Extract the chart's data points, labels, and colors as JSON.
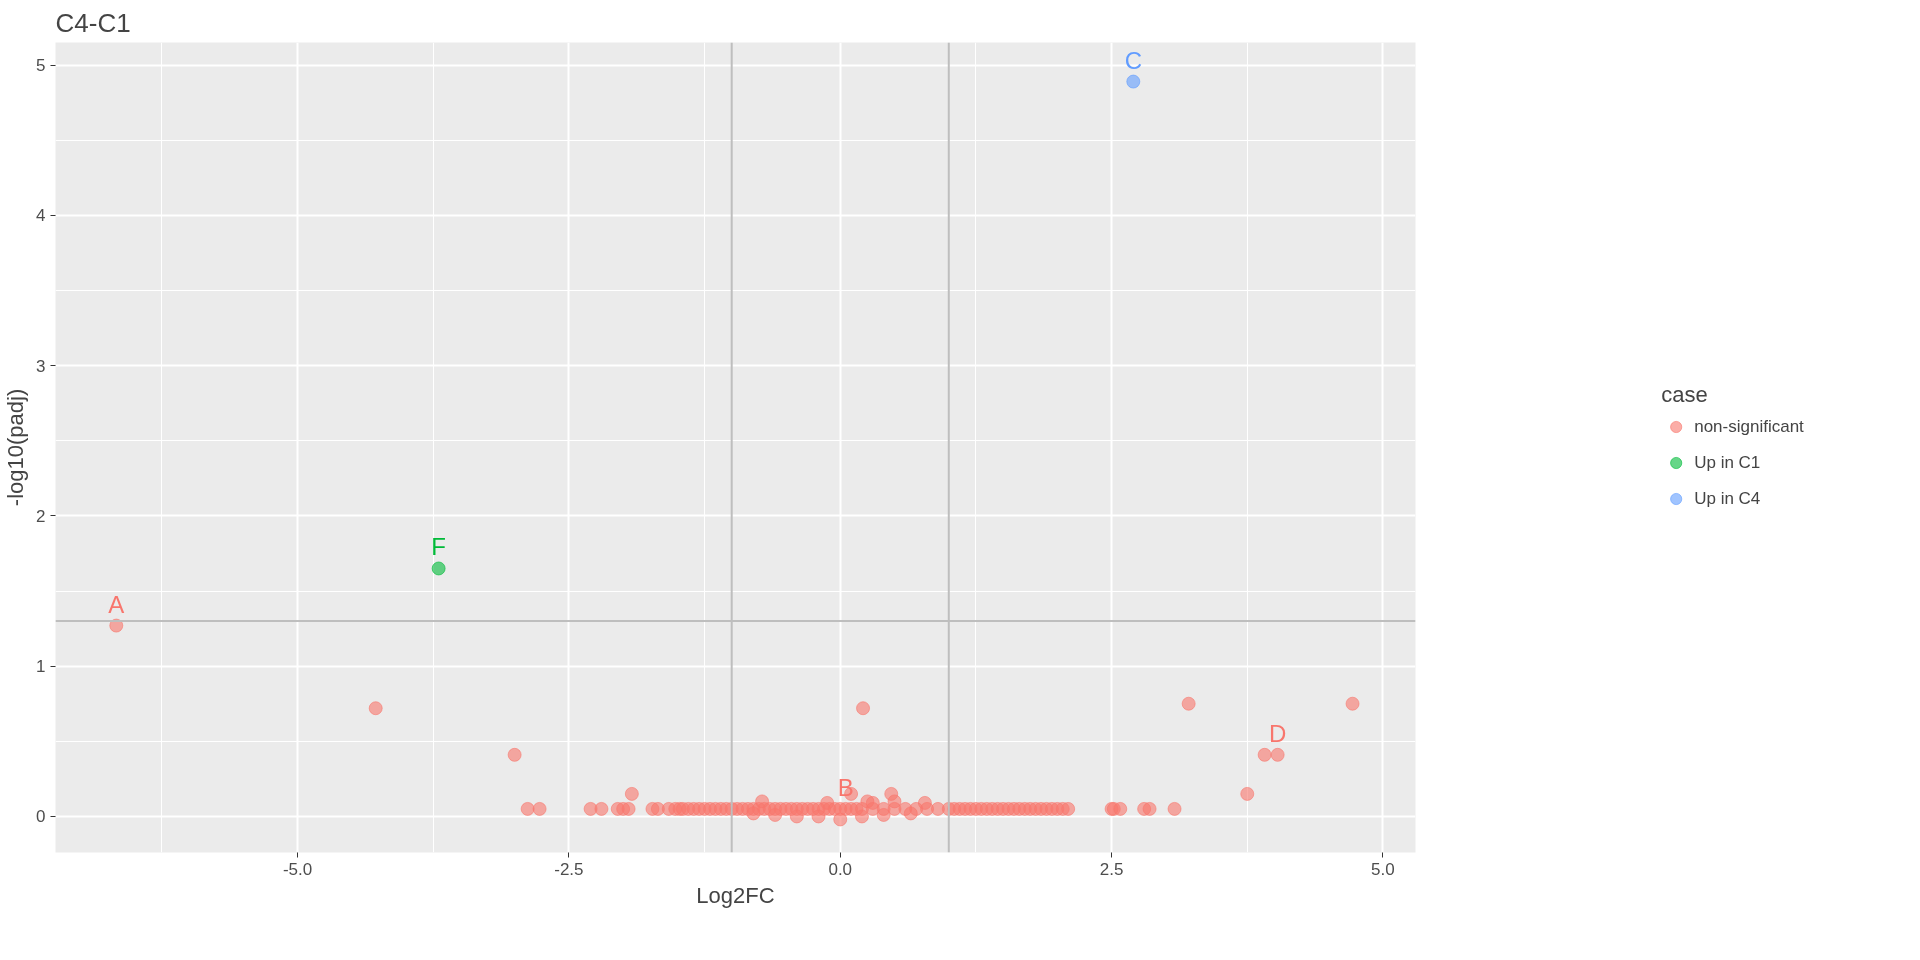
{
  "chart_data": {
    "type": "scatter",
    "title": "C4-C1",
    "xlabel": "Log2FC",
    "ylabel": "-log10(padj)",
    "legend_title": "case",
    "legend": "right",
    "grid": true,
    "marker": "circle",
    "xlim": [
      -7.23,
      5.3
    ],
    "ylim": [
      -0.24,
      5.15
    ],
    "xticks": [
      {
        "value": -5,
        "label": "-5.0"
      },
      {
        "value": -2.5,
        "label": "-2.5"
      },
      {
        "value": 0,
        "label": "0.0"
      },
      {
        "value": 2.5,
        "label": "2.5"
      },
      {
        "value": 5,
        "label": "5.0"
      }
    ],
    "yticks": [
      0,
      1,
      2,
      3,
      4,
      5
    ],
    "ref_lines": [
      {
        "axis": "x",
        "value": -1,
        "color": "#bebebe"
      },
      {
        "axis": "x",
        "value": 1,
        "color": "#bebebe"
      },
      {
        "axis": "y",
        "value": 1.3,
        "color": "#bebebe"
      }
    ],
    "annotations": [
      {
        "text": "A",
        "x": -6.67,
        "y": 1.27
      },
      {
        "text": "B",
        "x": 0.05,
        "y": 0.05
      },
      {
        "text": "C",
        "x": 2.7,
        "y": 4.89
      },
      {
        "text": "D",
        "x": 4.03,
        "y": 0.41
      },
      {
        "text": "F",
        "x": -3.7,
        "y": 1.65
      }
    ],
    "series": [
      {
        "name": "non-significant",
        "color": "#f8766d",
        "x": [
          -6.67,
          -4.28,
          -3.0,
          -2.88,
          -2.77,
          -2.3,
          -2.2,
          -2.05,
          -2.0,
          -1.95,
          -1.92,
          -1.73,
          -1.68,
          -1.58,
          -1.52,
          -1.48,
          -1.45,
          -1.4,
          -1.35,
          -1.3,
          -1.25,
          -1.2,
          -1.15,
          -1.1,
          -1.05,
          -1.0,
          -0.95,
          -0.9,
          -0.85,
          -0.8,
          -0.75,
          -0.72,
          -0.7,
          -0.65,
          -0.6,
          -0.55,
          -0.5,
          -0.45,
          -0.4,
          -0.35,
          -0.3,
          -0.25,
          -0.2,
          -0.15,
          -0.12,
          -0.1,
          -0.05,
          0.0,
          0.05,
          -0.8,
          -0.6,
          -0.4,
          -0.2,
          0.0,
          0.2,
          0.4,
          0.65,
          0.1,
          0.21,
          0.25,
          0.3,
          0.47,
          0.5,
          0.78,
          0.1,
          0.15,
          0.2,
          0.3,
          0.4,
          0.5,
          0.6,
          0.7,
          0.8,
          0.9,
          1.0,
          1.05,
          1.1,
          1.15,
          1.2,
          1.25,
          1.3,
          1.35,
          1.4,
          1.45,
          1.5,
          1.55,
          1.6,
          1.65,
          1.7,
          1.75,
          1.8,
          1.85,
          1.9,
          1.95,
          2.0,
          2.05,
          2.1,
          2.5,
          2.52,
          2.58,
          2.8,
          2.85,
          3.08,
          3.21,
          3.75,
          3.91,
          4.03,
          4.72
        ],
        "values": [
          1.27,
          0.72,
          0.41,
          0.05,
          0.05,
          0.05,
          0.05,
          0.05,
          0.05,
          0.05,
          0.15,
          0.05,
          0.05,
          0.05,
          0.05,
          0.05,
          0.05,
          0.05,
          0.05,
          0.05,
          0.05,
          0.05,
          0.05,
          0.05,
          0.05,
          0.05,
          0.05,
          0.05,
          0.05,
          0.05,
          0.05,
          0.1,
          0.05,
          0.05,
          0.05,
          0.05,
          0.05,
          0.05,
          0.05,
          0.05,
          0.05,
          0.05,
          0.05,
          0.05,
          0.09,
          0.05,
          0.05,
          0.05,
          0.05,
          0.02,
          0.01,
          0.0,
          0.0,
          -0.02,
          0.0,
          0.01,
          0.02,
          0.15,
          0.72,
          0.1,
          0.09,
          0.15,
          0.1,
          0.09,
          0.05,
          0.05,
          0.05,
          0.05,
          0.05,
          0.05,
          0.05,
          0.05,
          0.05,
          0.05,
          0.05,
          0.05,
          0.05,
          0.05,
          0.05,
          0.05,
          0.05,
          0.05,
          0.05,
          0.05,
          0.05,
          0.05,
          0.05,
          0.05,
          0.05,
          0.05,
          0.05,
          0.05,
          0.05,
          0.05,
          0.05,
          0.05,
          0.05,
          0.05,
          0.05,
          0.05,
          0.05,
          0.05,
          0.05,
          0.75,
          0.15,
          0.41,
          0.41,
          0.75
        ]
      },
      {
        "name": "Up in C1",
        "color": "#00ba38",
        "x": [
          -3.7
        ],
        "values": [
          1.65
        ]
      },
      {
        "name": "Up in C4",
        "color": "#619cff",
        "x": [
          2.7
        ],
        "values": [
          4.89
        ]
      }
    ]
  }
}
